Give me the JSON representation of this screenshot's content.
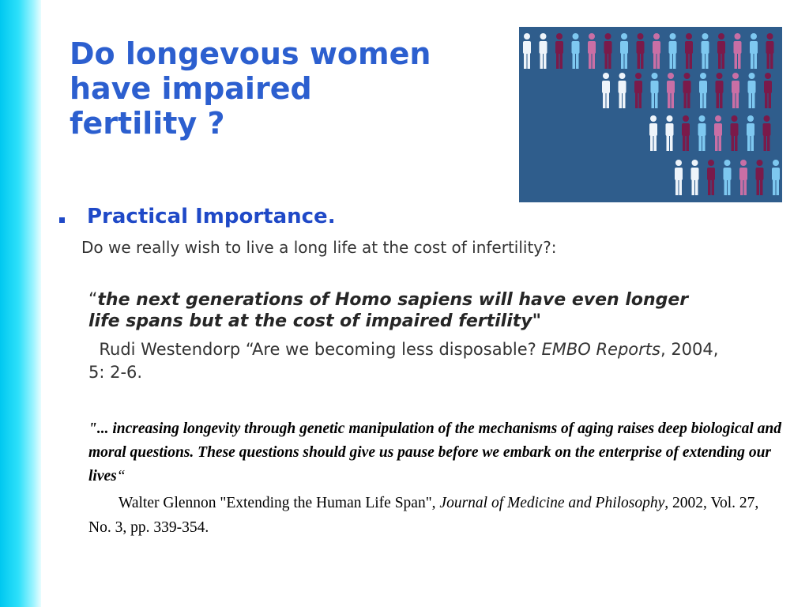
{
  "slide": {
    "title_lines": [
      "Do longevous women",
      "have impaired",
      "fertility ?"
    ],
    "bullet_heading": "Practical Importance.",
    "question": "Do we really wish to live a long life at the cost of infertility?:",
    "quote1": {
      "open_mark": "“",
      "text": "the next generations of Homo sapiens will have even longer life spans but at the cost of impaired fertility",
      "close_mark": "\"",
      "citation_prefix": "Rudi Westendorp  “Are we becoming less disposable? ",
      "journal": "EMBO Reports",
      "citation_suffix": ", 2004, 5: 2-6."
    },
    "quote2": {
      "text": "\"... increasing longevity through genetic manipulation of the mechanisms of aging raises deep biological and moral questions.  These questions should give us pause before we embark on the enterprise of extending our lives",
      "close_mark": "“",
      "citation_prefix": "Walter Glennon \"Extending the Human Life Span\", ",
      "journal": "Journal of Medicine and Philosophy",
      "citation_suffix": ", 2002, Vol. 27, No. 3, pp. 339-354."
    }
  },
  "image": {
    "icon": "population-figures-image",
    "background_color": "#2f5d8c",
    "figure_colors": {
      "white": "#eef4fa",
      "light_blue": "#7ec8f0",
      "maroon": "#7a1a4a",
      "pink": "#c96fa5"
    }
  },
  "colors": {
    "title": "#2c5fcf",
    "heading": "#1f49c7",
    "accent_bar": "#00c8f0"
  }
}
